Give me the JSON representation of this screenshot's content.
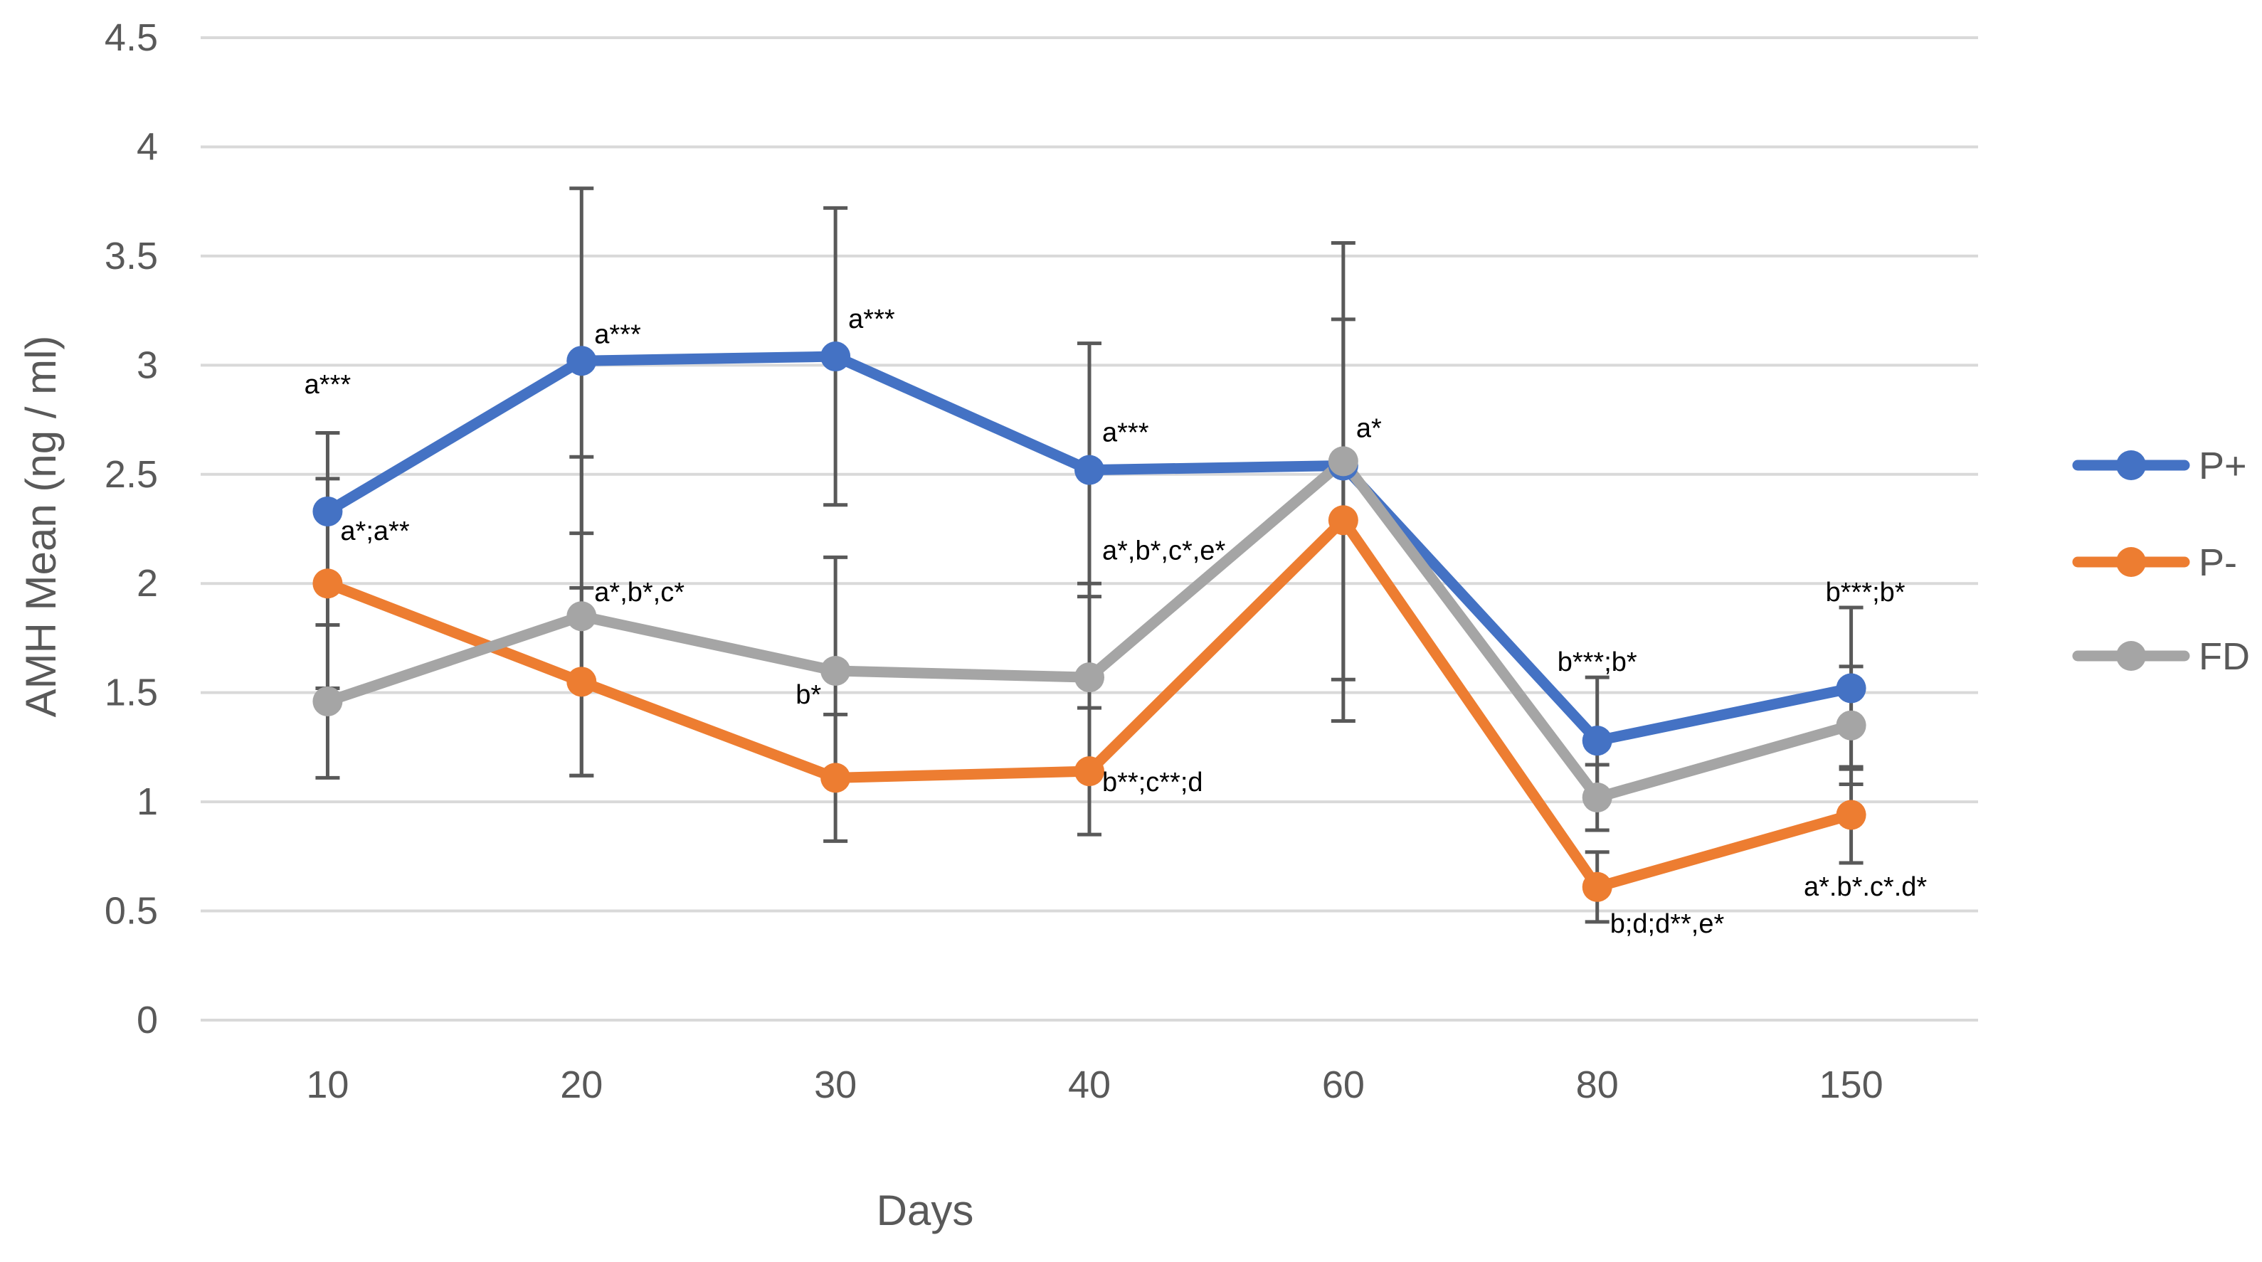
{
  "chart_data": {
    "type": "line",
    "title": "",
    "xlabel": "Days",
    "ylabel": "AMH Mean (ng / ml)",
    "categories": [
      "10",
      "20",
      "30",
      "40",
      "60",
      "80",
      "150"
    ],
    "ylim": [
      0,
      4.5
    ],
    "yticks": [
      0,
      0.5,
      1,
      1.5,
      2,
      2.5,
      3,
      3.5,
      4,
      4.5
    ],
    "ytick_labels": [
      "0",
      "0.5",
      "1",
      "1.5",
      "2",
      "2.5",
      "3",
      "3.5",
      "4",
      "4.5"
    ],
    "grid": true,
    "legend_position": "right",
    "series": [
      {
        "name": "P+",
        "color": "#4472C4",
        "values": [
          2.33,
          3.02,
          3.04,
          2.52,
          2.54,
          1.28,
          1.52
        ],
        "error": [
          0.36,
          0.79,
          0.68,
          0.58,
          0.02,
          0.29,
          0.37
        ]
      },
      {
        "name": "P-",
        "color": "#ED7D31",
        "values": [
          2.0,
          1.55,
          1.11,
          1.14,
          2.29,
          0.61,
          0.94
        ],
        "error": [
          0.48,
          0.43,
          0.29,
          0.29,
          0.92,
          0.16,
          0.22
        ]
      },
      {
        "name": "FD",
        "color": "#A5A5A5",
        "values": [
          1.46,
          1.85,
          1.6,
          1.57,
          2.56,
          1.02,
          1.35
        ],
        "error": [
          0.35,
          0.73,
          0.52,
          0.43,
          1.0,
          0.15,
          0.27
        ]
      }
    ],
    "annotations": [
      {
        "text": "a***",
        "category": "10",
        "y": 2.87
      },
      {
        "text": "a*;a**",
        "category": "10",
        "y": 2.2
      },
      {
        "text": "a***",
        "category": "20",
        "y": 3.1
      },
      {
        "text": "a*,b*,c*",
        "category": "20",
        "y": 1.92
      },
      {
        "text": "a***",
        "category": "30",
        "y": 3.17
      },
      {
        "text": "b*",
        "category": "30",
        "y": 1.45
      },
      {
        "text": "a***",
        "category": "40",
        "y": 2.65
      },
      {
        "text": "a*,b*,c*,e*",
        "category": "40",
        "y": 2.11
      },
      {
        "text": "b**;c**;d",
        "category": "40",
        "y": 1.05
      },
      {
        "text": "a*",
        "category": "60",
        "y": 2.67
      },
      {
        "text": "b***;b*",
        "category": "80",
        "y": 1.6
      },
      {
        "text": "b;d;d**,e*",
        "category": "80",
        "y": 0.4
      },
      {
        "text": "b***;b*",
        "category": "150",
        "y": 1.92
      },
      {
        "text": "a*.b*.c*.d*",
        "category": "150",
        "y": 0.57
      }
    ]
  }
}
